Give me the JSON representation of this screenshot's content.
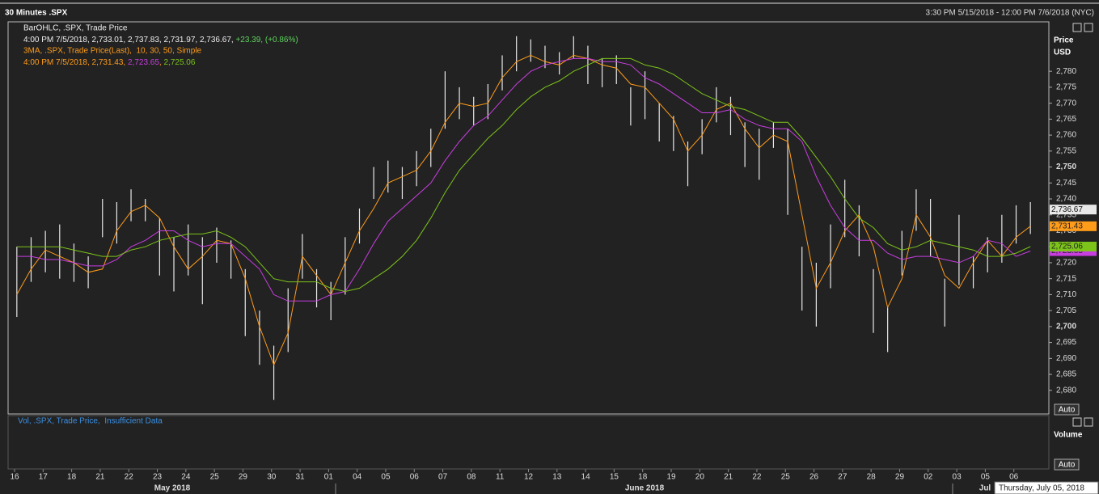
{
  "header": {
    "title": "30 Minutes .SPX",
    "range": "3:30 PM 5/15/2018 - 12:00 PM 7/6/2018 (NYC)",
    "ohlc_legend": "BarOHLC, .SPX, Trade Price",
    "ohlc_values": "4:00 PM 7/5/2018, 2,733.01, 2,737.83, 2,731.97, 2,736.67, ",
    "ohlc_change": "+23.39, (+0.86%)",
    "ma_legend": "3MA, .SPX, Trade Price(Last),  10, 30, 50, Simple",
    "ma_values": [
      "4:00 PM 7/5/2018, 2,731.43, ",
      "2,723.65",
      ", ",
      "2,725.06"
    ],
    "axis_title": "Price",
    "axis_unit": "USD",
    "auto": "Auto",
    "volume_legend": "Vol, .SPX, Trade Price,  Insufficient Data",
    "volume_title": "Volume",
    "months": [
      "May 2018",
      "June 2018",
      "Jul"
    ],
    "tooltip": "Thursday, July 05, 2018"
  },
  "chart_data": {
    "type": "ohlc",
    "categories": [
      "16",
      null,
      "17",
      null,
      "18",
      null,
      "21",
      null,
      "22",
      null,
      "23",
      null,
      "24",
      null,
      "25",
      null,
      "29",
      null,
      "30",
      null,
      "31",
      null,
      "01",
      null,
      "04",
      null,
      "05",
      null,
      "06",
      null,
      "07",
      null,
      "08",
      null,
      "11",
      null,
      "12",
      null,
      "13",
      null,
      "14",
      null,
      "15",
      null,
      "18",
      null,
      "19",
      null,
      "20",
      null,
      "21",
      null,
      "22",
      null,
      "25",
      null,
      "26",
      null,
      "27",
      null,
      "28",
      null,
      "29",
      null,
      "02",
      null,
      "03",
      null,
      "05",
      null,
      "06",
      null
    ],
    "high": [
      2725,
      2728,
      2730,
      2732,
      2726,
      2722,
      2740,
      2739,
      2743,
      2740,
      2734,
      2728,
      2732,
      2728,
      2731,
      2727,
      2718,
      2705,
      2694,
      2712,
      2729,
      2718,
      2714,
      2728,
      2737,
      2750,
      2752,
      2750,
      2755,
      2762,
      2780,
      2775,
      2772,
      2776,
      2785,
      2791,
      2790,
      2788,
      2786,
      2791,
      2788,
      2784,
      2785,
      2775,
      2780,
      2770,
      2766,
      2758,
      2765,
      2775,
      2772,
      2764,
      2762,
      2764,
      2762,
      2725,
      2720,
      2732,
      2746,
      2738,
      2718,
      2706,
      2730,
      2743,
      2740,
      2715,
      2735,
      2722,
      2728,
      2735,
      2738,
      2739
    ],
    "low": [
      2703,
      2714,
      2717,
      2715,
      2714,
      2712,
      2728,
      2726,
      2733,
      2733,
      2716,
      2711,
      2716,
      2707,
      2720,
      2715,
      2697,
      2688,
      2677,
      2692,
      2715,
      2706,
      2702,
      2710,
      2726,
      2740,
      2742,
      2740,
      2744,
      2750,
      2762,
      2765,
      2763,
      2765,
      2774,
      2780,
      2783,
      2781,
      2779,
      2784,
      2776,
      2775,
      2776,
      2763,
      2765,
      2758,
      2755,
      2744,
      2754,
      2764,
      2760,
      2750,
      2746,
      2756,
      2735,
      2705,
      2700,
      2712,
      2728,
      2722,
      2698,
      2692,
      2716,
      2730,
      2722,
      2700,
      2713,
      2712,
      2717,
      2720,
      2726,
      2729
    ],
    "bar_color": "#e8e8e8",
    "last_price": {
      "value": 2736.67,
      "label": "2,736.67"
    },
    "series": [
      {
        "color": "#ff9c1a",
        "values": [
          2710,
          2718,
          2724,
          2722,
          2720,
          2717,
          2718,
          2730,
          2736,
          2738,
          2734,
          2725,
          2718,
          2722,
          2727,
          2726,
          2715,
          2700,
          2688,
          2698,
          2722,
          2716,
          2710,
          2720,
          2730,
          2737,
          2745,
          2747,
          2749,
          2755,
          2764,
          2770,
          2769,
          2770,
          2778,
          2783,
          2785,
          2783,
          2782,
          2785,
          2784,
          2782,
          2781,
          2776,
          2775,
          2770,
          2765,
          2755,
          2760,
          2768,
          2770,
          2762,
          2756,
          2760,
          2758,
          2735,
          2712,
          2720,
          2730,
          2735,
          2725,
          2706,
          2715,
          2735,
          2728,
          2716,
          2712,
          2720,
          2727,
          2722,
          2728,
          2731.43
        ],
        "last_label": {
          "value": 2731.43,
          "label": "2,731.43"
        }
      },
      {
        "color": "#c83ee0",
        "values": [
          2722,
          2722,
          2721,
          2721,
          2720,
          2719,
          2719,
          2721,
          2725,
          2727,
          2730,
          2730,
          2727,
          2725,
          2726,
          2726,
          2722,
          2718,
          2710,
          2708,
          2708,
          2708,
          2710,
          2711,
          2718,
          2726,
          2733,
          2737,
          2741,
          2745,
          2752,
          2758,
          2763,
          2766,
          2771,
          2776,
          2780,
          2782,
          2783,
          2784,
          2784,
          2783,
          2783,
          2782,
          2778,
          2776,
          2773,
          2770,
          2767,
          2767,
          2768,
          2765,
          2763,
          2762,
          2762,
          2758,
          2747,
          2738,
          2731,
          2727,
          2727,
          2723,
          2721,
          2722,
          2722,
          2721,
          2720,
          2722,
          2727,
          2726,
          2722,
          2723.65
        ],
        "last_label": {
          "value": 2723.65,
          "label": "2,723.65"
        }
      },
      {
        "color": "#7cc41a",
        "values": [
          2725,
          2725,
          2725,
          2725,
          2724,
          2723,
          2722,
          2722,
          2724,
          2725,
          2727,
          2728,
          2729,
          2729,
          2730,
          2728,
          2725,
          2720,
          2715,
          2714,
          2714,
          2714,
          2712,
          2711,
          2712,
          2715,
          2718,
          2722,
          2727,
          2734,
          2742,
          2749,
          2754,
          2759,
          2763,
          2768,
          2772,
          2775,
          2777,
          2780,
          2782,
          2784,
          2784,
          2784,
          2782,
          2781,
          2779,
          2776,
          2773,
          2771,
          2769,
          2768,
          2766,
          2764,
          2764,
          2759,
          2753,
          2747,
          2740,
          2734,
          2731,
          2726,
          2724,
          2725,
          2727,
          2726,
          2725,
          2724,
          2722,
          2722,
          2723,
          2725.06
        ],
        "last_label": {
          "value": 2725.06,
          "label": "2,725.06"
        }
      }
    ],
    "ylim": [
      2672.6,
      2795.5
    ],
    "yticks": [
      {
        "value": 2680,
        "label": "2,680"
      },
      {
        "value": 2685,
        "label": "2,685"
      },
      {
        "value": 2690,
        "label": "2,690"
      },
      {
        "value": 2695,
        "label": "2,695"
      },
      {
        "value": 2700,
        "label": "2,700"
      },
      {
        "value": 2705,
        "label": "2,705"
      },
      {
        "value": 2710,
        "label": "2,710"
      },
      {
        "value": 2715,
        "label": "2,715"
      },
      {
        "value": 2720,
        "label": "2,720"
      },
      {
        "value": 2725,
        "label": "2,725"
      },
      {
        "value": 2730,
        "label": "2,730"
      },
      {
        "value": 2735,
        "label": "2,735"
      },
      {
        "value": 2740,
        "label": "2,740"
      },
      {
        "value": 2745,
        "label": "2,745"
      },
      {
        "value": 2750,
        "label": "2,750"
      },
      {
        "value": 2755,
        "label": "2,755"
      },
      {
        "value": 2760,
        "label": "2,760"
      },
      {
        "value": 2765,
        "label": "2,765"
      },
      {
        "value": 2770,
        "label": "2,770"
      },
      {
        "value": 2775,
        "label": "2,775"
      },
      {
        "value": 2780,
        "label": "2,780"
      }
    ]
  }
}
